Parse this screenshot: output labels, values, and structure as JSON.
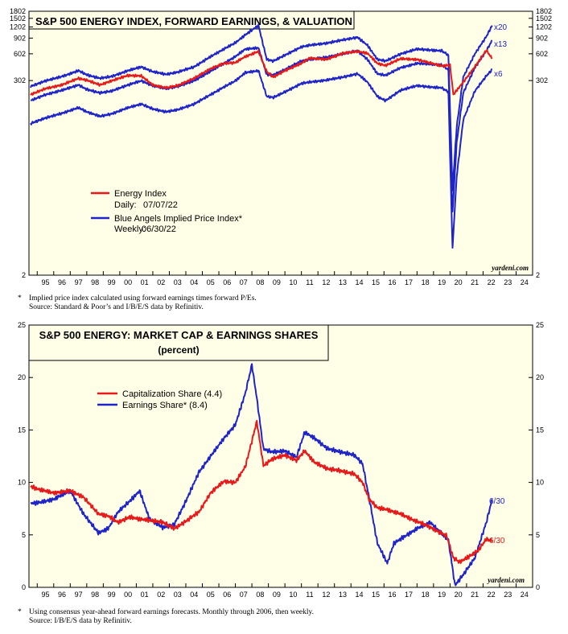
{
  "chart_data": [
    {
      "type": "line",
      "title": "S&P 500 ENERGY INDEX, FORWARD EARNINGS, & VALUATION",
      "yscale": "log",
      "ylim": [
        2,
        1802
      ],
      "xlim": [
        1994.5,
        2025
      ],
      "ytick_labels": [
        "2",
        "302",
        "602",
        "902",
        "1202",
        "1502",
        "1802"
      ],
      "x_tick_labels": [
        "95",
        "96",
        "97",
        "98",
        "99",
        "00",
        "01",
        "02",
        "03",
        "04",
        "05",
        "06",
        "07",
        "08",
        "09",
        "10",
        "11",
        "12",
        "13",
        "14",
        "15",
        "16",
        "17",
        "18",
        "19",
        "20",
        "21",
        "22",
        "23",
        "24"
      ],
      "legend": [
        {
          "label": "Energy Index",
          "detail_label": "Daily:",
          "detail": "07/07/22",
          "color": "#e8191a"
        },
        {
          "label": "Blue Angels Implied Price Index*",
          "detail_label": "Weekly:",
          "detail": "06/30/22",
          "color": "#1f24c8"
        }
      ],
      "annotations": [
        "x20",
        "x13",
        "x6"
      ],
      "watermark": "yardeni.com",
      "series": [
        {
          "name": "Energy Index",
          "color": "#e8191a",
          "x": [
            1994.6,
            1995.5,
            1996.5,
            1997.5,
            1998.0,
            1998.8,
            1999.5,
            2000.5,
            2001.3,
            2002.0,
            2002.8,
            2003.5,
            2004.5,
            2005.5,
            2006.3,
            2007.0,
            2007.6,
            2008.4,
            2008.9,
            2009.3,
            2010.0,
            2011.0,
            2011.5,
            2012.5,
            2013.5,
            2014.4,
            2015.0,
            2015.6,
            2016.1,
            2017.0,
            2018.0,
            2018.9,
            2019.5,
            2020.0,
            2020.2,
            2020.8,
            2021.5,
            2022.2,
            2022.55
          ],
          "y": [
            210,
            245,
            270,
            320,
            305,
            270,
            300,
            345,
            340,
            270,
            250,
            265,
            320,
            410,
            470,
            480,
            560,
            640,
            380,
            330,
            390,
            470,
            540,
            520,
            610,
            640,
            610,
            470,
            445,
            530,
            520,
            470,
            440,
            450,
            210,
            290,
            430,
            660,
            530
          ]
        },
        {
          "name": "Blue Angels Implied Price Index (x13)",
          "color": "#1f24c8",
          "x": [
            1994.6,
            1995.5,
            1996.5,
            1997.5,
            1998.0,
            1998.8,
            1999.5,
            2000.5,
            2001.3,
            2002.0,
            2002.8,
            2003.5,
            2004.5,
            2005.5,
            2006.3,
            2007.0,
            2007.6,
            2008.4,
            2008.9,
            2009.3,
            2010.0,
            2011.0,
            2011.5,
            2012.5,
            2013.5,
            2014.4,
            2015.0,
            2015.6,
            2016.1,
            2017.0,
            2018.0,
            2018.9,
            2019.5,
            2019.9,
            2020.15,
            2020.4,
            2020.8,
            2021.5,
            2022.2,
            2022.55
          ],
          "y": [
            180,
            210,
            235,
            270,
            240,
            220,
            230,
            270,
            300,
            265,
            245,
            260,
            300,
            385,
            470,
            560,
            680,
            700,
            350,
            350,
            400,
            500,
            520,
            550,
            600,
            650,
            520,
            360,
            345,
            420,
            470,
            460,
            450,
            400,
            10,
            60,
            220,
            420,
            650,
            850
          ]
        },
        {
          "name": "Blue Angels Implied Price Index (x20)",
          "color": "#1f24c8",
          "x": [
            1994.6,
            1995.5,
            1996.5,
            1997.5,
            1998.0,
            1998.8,
            1999.5,
            2000.5,
            2001.3,
            2002.0,
            2002.8,
            2003.5,
            2004.5,
            2005.5,
            2006.3,
            2007.0,
            2007.6,
            2008.4,
            2008.9,
            2009.3,
            2010.0,
            2011.0,
            2011.5,
            2012.5,
            2013.5,
            2014.4,
            2015.0,
            2015.6,
            2016.1,
            2017.0,
            2018.0,
            2018.9,
            2019.5,
            2019.9,
            2020.15,
            2020.4,
            2020.8,
            2021.5,
            2022.2,
            2022.55
          ],
          "y": [
            260,
            300,
            335,
            390,
            350,
            320,
            335,
            390,
            430,
            380,
            355,
            375,
            430,
            560,
            680,
            800,
            980,
            1250,
            520,
            500,
            580,
            720,
            750,
            790,
            860,
            920,
            750,
            520,
            500,
            600,
            680,
            660,
            650,
            580,
            18,
            90,
            330,
            600,
            940,
            1250
          ]
        },
        {
          "name": "Blue Angels Implied Price Index (x6)",
          "color": "#1f24c8",
          "x": [
            1994.6,
            1995.5,
            1996.5,
            1997.5,
            1998.0,
            1998.8,
            1999.5,
            2000.5,
            2001.3,
            2002.0,
            2002.8,
            2003.5,
            2004.5,
            2005.5,
            2006.3,
            2007.0,
            2007.6,
            2008.4,
            2008.9,
            2009.3,
            2010.0,
            2011.0,
            2011.5,
            2012.5,
            2013.5,
            2014.4,
            2015.0,
            2015.6,
            2016.1,
            2017.0,
            2018.0,
            2018.9,
            2019.5,
            2019.9,
            2020.15,
            2020.4,
            2020.8,
            2021.5,
            2022.2,
            2022.55
          ],
          "y": [
            100,
            115,
            130,
            150,
            135,
            120,
            128,
            150,
            165,
            145,
            135,
            142,
            165,
            210,
            255,
            300,
            370,
            390,
            200,
            195,
            225,
            280,
            290,
            305,
            330,
            360,
            290,
            200,
            180,
            235,
            265,
            255,
            250,
            225,
            4,
            25,
            110,
            230,
            340,
            400
          ]
        }
      ]
    },
    {
      "type": "line",
      "title": "S&P 500 ENERGY: MARKET CAP & EARNINGS SHARES",
      "subtitle": "(percent)",
      "ylim": [
        0,
        25
      ],
      "xlim": [
        1994.5,
        2025
      ],
      "ytick_labels": [
        "0",
        "5",
        "10",
        "15",
        "20",
        "25"
      ],
      "x_tick_labels": [
        "95",
        "96",
        "97",
        "98",
        "99",
        "00",
        "01",
        "02",
        "03",
        "04",
        "05",
        "06",
        "07",
        "08",
        "09",
        "10",
        "11",
        "12",
        "13",
        "14",
        "15",
        "16",
        "17",
        "18",
        "19",
        "20",
        "21",
        "22",
        "23",
        "24"
      ],
      "legend": [
        {
          "label": "Capitalization Share (4.4)",
          "color": "#e8191a"
        },
        {
          "label": "Earnings Share* (8.4)",
          "color": "#1f24c8"
        }
      ],
      "end_labels": [
        {
          "label": "6/30",
          "value": 8.4,
          "color": "#1f24c8"
        },
        {
          "label": "6/30",
          "value": 4.4,
          "color": "#e8191a"
        }
      ],
      "watermark": "yardeni.com",
      "series": [
        {
          "name": "Capitalization Share",
          "color": "#e8191a",
          "x": [
            1994.6,
            1995.2,
            1996.0,
            1997.0,
            1997.8,
            1998.7,
            1999.3,
            1999.9,
            2000.6,
            2001.2,
            2001.8,
            2002.6,
            2003.3,
            2004.0,
            2004.8,
            2005.5,
            2006.3,
            2007.0,
            2007.6,
            2008.3,
            2008.7,
            2009.2,
            2010.0,
            2010.7,
            2011.2,
            2011.8,
            2012.6,
            2013.4,
            2014.2,
            2014.7,
            2015.1,
            2015.6,
            2016.2,
            2017.0,
            2017.8,
            2018.6,
            2019.3,
            2019.8,
            2020.2,
            2020.6,
            2021.2,
            2021.7,
            2022.2,
            2022.55
          ],
          "y": [
            9.6,
            9.3,
            9.0,
            9.2,
            8.6,
            7.0,
            6.8,
            6.2,
            6.7,
            6.5,
            6.4,
            6.2,
            5.6,
            6.3,
            7.2,
            9.0,
            10.1,
            10.0,
            11.5,
            15.8,
            11.6,
            12.2,
            12.6,
            12.1,
            13.0,
            11.9,
            11.3,
            11.1,
            10.8,
            10.0,
            8.4,
            7.6,
            7.4,
            7.0,
            6.4,
            5.9,
            5.3,
            4.9,
            2.8,
            2.4,
            3.0,
            3.5,
            4.6,
            4.4
          ]
        },
        {
          "name": "Earnings Share",
          "color": "#1f24c8",
          "x": [
            1994.6,
            1995.2,
            1996.0,
            1997.0,
            1997.8,
            1998.7,
            1999.3,
            1999.9,
            2000.6,
            2001.2,
            2001.8,
            2002.6,
            2003.3,
            2004.0,
            2004.8,
            2005.5,
            2006.3,
            2007.0,
            2007.6,
            2008.0,
            2008.3,
            2008.7,
            2009.2,
            2010.0,
            2010.7,
            2011.2,
            2011.8,
            2012.6,
            2013.4,
            2014.2,
            2014.7,
            2015.1,
            2015.6,
            2016.2,
            2016.6,
            2017.2,
            2018.0,
            2018.8,
            2019.5,
            2019.9,
            2020.3,
            2020.8,
            2021.5,
            2022.2,
            2022.55
          ],
          "y": [
            8.0,
            8.1,
            8.4,
            9.2,
            7.0,
            5.2,
            5.6,
            7.2,
            8.2,
            9.2,
            6.5,
            5.7,
            6.0,
            8.2,
            11.0,
            12.5,
            14.2,
            15.5,
            18.5,
            21.2,
            18.0,
            13.2,
            12.9,
            13.0,
            12.4,
            14.8,
            14.2,
            13.2,
            12.9,
            12.6,
            11.8,
            8.5,
            4.2,
            2.3,
            4.2,
            4.8,
            5.6,
            6.2,
            5.1,
            4.5,
            0.2,
            1.2,
            2.8,
            6.2,
            8.4
          ]
        }
      ]
    }
  ],
  "footnotes": {
    "top": {
      "marker": "*",
      "line1": "Implied price index calculated using forward earnings times forward P/Es.",
      "line2": "Source: Standard & Poor’s and I/B/E/S data by Refinitiv."
    },
    "bottom": {
      "marker": "*",
      "line1": "Using consensus year-ahead forward earnings forecasts. Monthly through 2006, then weekly.",
      "line2": "Source: I/B/E/S data by Refinitiv."
    }
  }
}
